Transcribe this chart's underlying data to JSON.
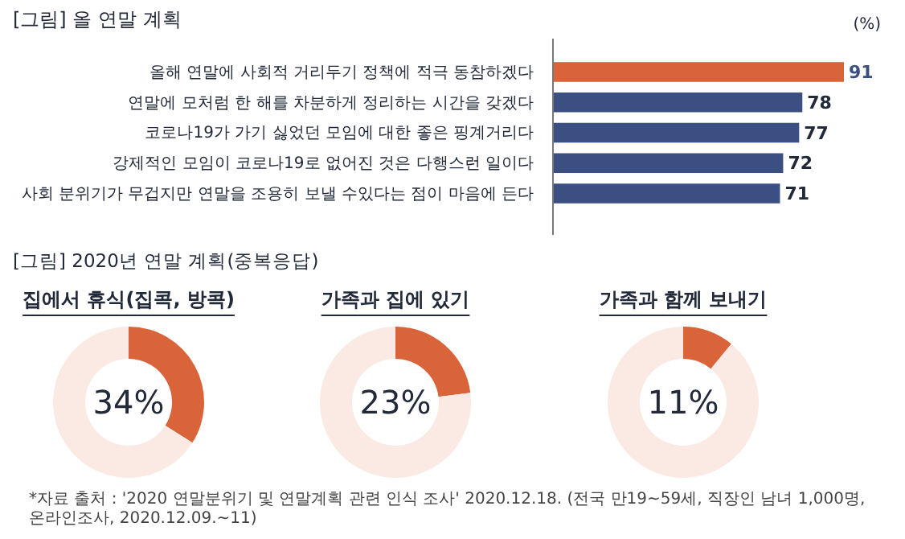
{
  "chart_data": [
    {
      "type": "bar",
      "orientation": "horizontal",
      "title": "[그림] 올 연말 계획",
      "xlabel": "(%)",
      "categories": [
        "올해 연말에 사회적 거리두기 정책에 적극 동참하겠다",
        "연말에 모처럼 한 해를 차분하게 정리하는 시간을 갖겠다",
        "코로나19가 가기 싫었던 모임에 대한 좋은 핑계거리다",
        "강제적인 모임이 코로나19로 없어진 것은 다행스런 일이다",
        "사회 분위기가 무겁지만 연말을 조용히 보낼 수있다는 점이 마음에 든다"
      ],
      "values": [
        91,
        78,
        77,
        72,
        71
      ],
      "colors": [
        "#d9643a",
        "#3b4f82",
        "#3b4f82",
        "#3b4f82",
        "#3b4f82"
      ],
      "tick_labels": "y",
      "data_labels": true
    },
    {
      "type": "donut",
      "title": "[그림] 2020년 연말 계획(중복응답)",
      "subtitle": "집에서 휴식(집콕, 방콕)",
      "categories": [
        null,
        null
      ],
      "values": [
        34,
        66
      ],
      "colors": [
        "#d9643a",
        "#fbeae4"
      ],
      "annotations": [
        "34%"
      ]
    },
    {
      "type": "donut",
      "subtitle": "가족과 집에 있기",
      "categories": [
        null,
        null
      ],
      "values": [
        23,
        77
      ],
      "colors": [
        "#d9643a",
        "#fbeae4"
      ],
      "annotations": [
        "23%"
      ]
    },
    {
      "type": "donut",
      "subtitle": "가족과 함께 보내기",
      "categories": [
        null,
        null
      ],
      "values": [
        11,
        89
      ],
      "colors": [
        "#d9643a",
        "#fbeae4"
      ],
      "annotations": [
        "11%",
        "*자료 출처 : '2020 연말분위기 및 연말계획 관련 인식 조사' 2020.12.18. (전국 만19~59세, 직장인 남녀 1,000명, 온라인조사, 2020.12.09.~11)"
      ]
    }
  ]
}
